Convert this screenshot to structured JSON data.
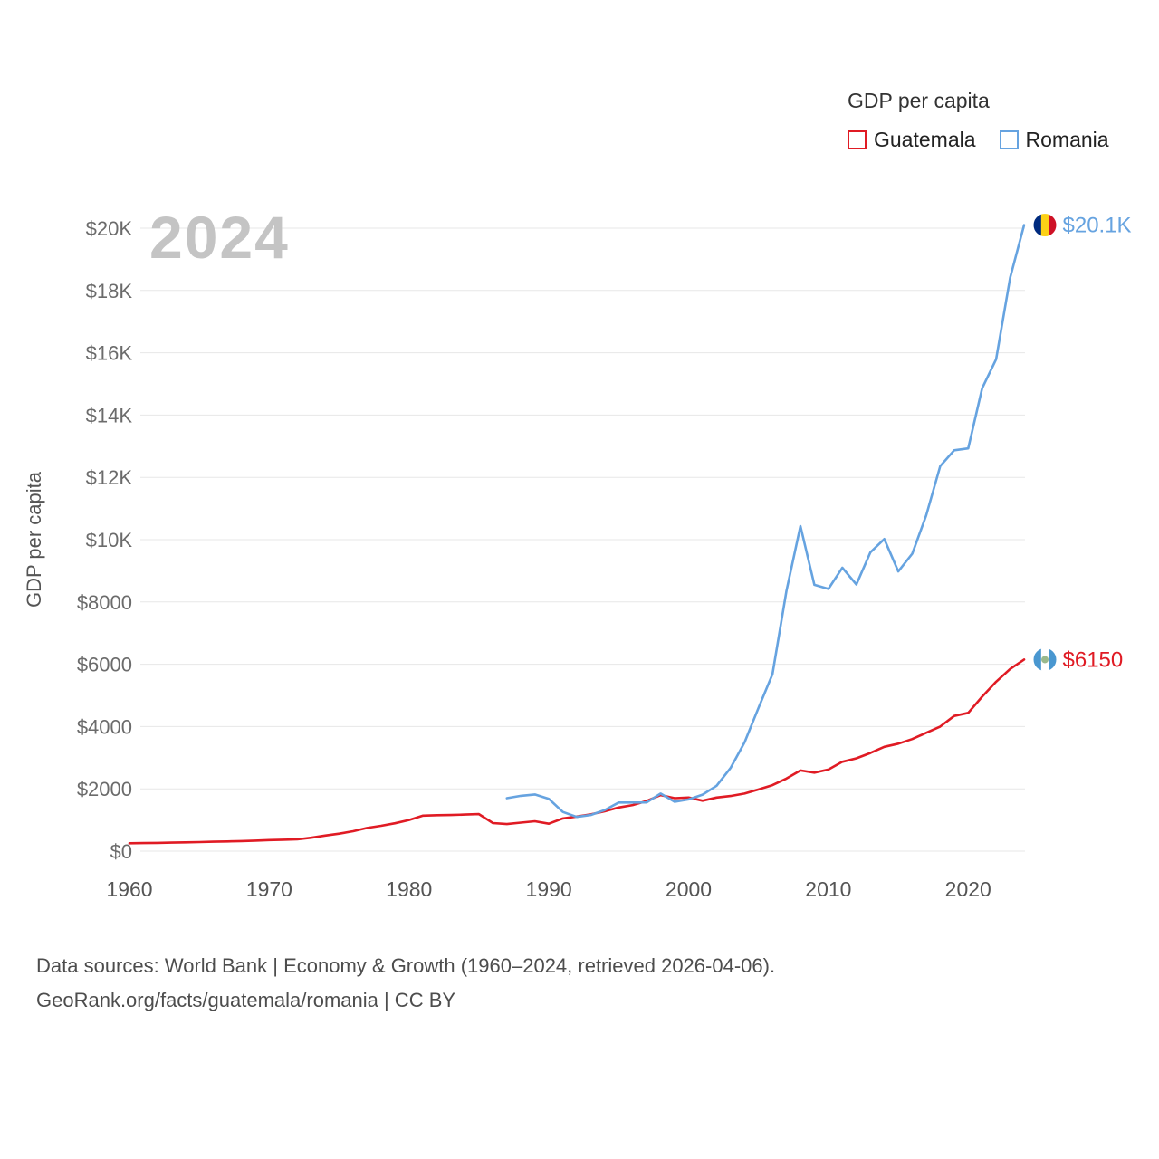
{
  "legend": {
    "title": "GDP per capita",
    "items": [
      {
        "label": "Guatemala",
        "color": "#e01b24"
      },
      {
        "label": "Romania",
        "color": "#66a3e0"
      }
    ]
  },
  "watermark": "2024",
  "footer": {
    "line1": "Data sources: World Bank | Economy & Growth (1960–2024, retrieved 2026-04-06).",
    "line2": "GeoRank.org/facts/guatemala/romania | CC BY"
  },
  "chart_data": {
    "type": "line",
    "title": "GDP per capita",
    "ylabel": "GDP per capita",
    "xlabel": "",
    "xlim": [
      1960,
      2024
    ],
    "ylim": [
      0,
      20000
    ],
    "grid": "horizontal",
    "legend_position": "top-right",
    "yticks": [
      {
        "value": 0,
        "label": "$0"
      },
      {
        "value": 2000,
        "label": "$2000"
      },
      {
        "value": 4000,
        "label": "$4000"
      },
      {
        "value": 6000,
        "label": "$6000"
      },
      {
        "value": 8000,
        "label": "$8000"
      },
      {
        "value": 10000,
        "label": "$10K"
      },
      {
        "value": 12000,
        "label": "$12K"
      },
      {
        "value": 14000,
        "label": "$14K"
      },
      {
        "value": 16000,
        "label": "$16K"
      },
      {
        "value": 18000,
        "label": "$18K"
      },
      {
        "value": 20000,
        "label": "$20K"
      }
    ],
    "xticks": [
      1960,
      1970,
      1980,
      1990,
      2000,
      2010,
      2020
    ],
    "series": [
      {
        "name": "Guatemala",
        "color": "#e01b24",
        "start_year": 1960,
        "end_label": "$6150",
        "flag": {
          "name": "guatemala-flag-icon",
          "stripes": [
            "#4997d0",
            "#ffffff",
            "#4997d0"
          ],
          "emblem": "#9ab98c"
        },
        "values": [
          252,
          258,
          264,
          272,
          282,
          292,
          302,
          312,
          324,
          338,
          355,
          365,
          378,
          430,
          500,
          560,
          640,
          745,
          815,
          895,
          1000,
          1140,
          1155,
          1160,
          1175,
          1190,
          900,
          870,
          915,
          960,
          880,
          1050,
          1110,
          1180,
          1280,
          1400,
          1480,
          1610,
          1800,
          1700,
          1720,
          1620,
          1720,
          1770,
          1850,
          1980,
          2120,
          2330,
          2590,
          2520,
          2620,
          2870,
          2980,
          3150,
          3350,
          3450,
          3600,
          3800,
          4000,
          4340,
          4440,
          4960,
          5440,
          5850,
          6150
        ]
      },
      {
        "name": "Romania",
        "color": "#66a3e0",
        "start_year": 1987,
        "end_label": "$20.1K",
        "flag": {
          "name": "romania-flag-icon",
          "stripes": [
            "#002b7f",
            "#fcd116",
            "#ce1126"
          ],
          "emblem": null
        },
        "values": [
          1700,
          1775,
          1820,
          1680,
          1260,
          1100,
          1160,
          1320,
          1560,
          1560,
          1565,
          1850,
          1585,
          1660,
          1815,
          2100,
          2670,
          3490,
          4600,
          5680,
          8360,
          10435,
          8550,
          8420,
          9100,
          8560,
          9590,
          10020,
          8980,
          9550,
          10780,
          12360,
          12870,
          12930,
          14860,
          15790,
          18410,
          20100
        ]
      }
    ]
  }
}
